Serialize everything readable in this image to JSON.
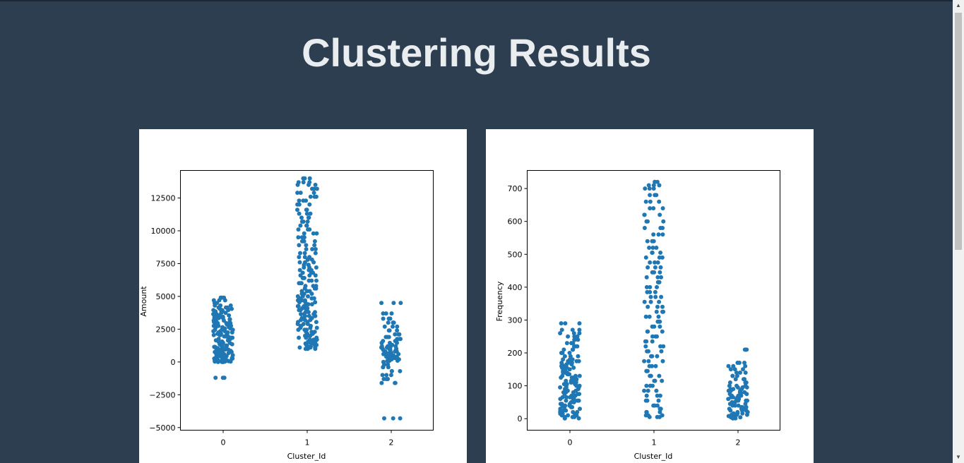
{
  "page": {
    "title": "Clustering Results"
  },
  "chart_data": [
    {
      "type": "scatter",
      "subtype": "strip",
      "title": "",
      "xlabel": "Cluster_Id",
      "ylabel": "Amount",
      "categories": [
        "0",
        "1",
        "2"
      ],
      "ylim": [
        -5200,
        14600
      ],
      "yticks": [
        -5000,
        -2500,
        0,
        2500,
        5000,
        7500,
        10000,
        12500
      ],
      "ytick_labels": [
        "−5000",
        "−2500",
        "0",
        "2500",
        "5000",
        "7500",
        "10000",
        "12500"
      ],
      "grid": false,
      "point_color": "#1f77b4",
      "series": [
        {
          "category": "0",
          "values": [
            -1200,
            0,
            30,
            60,
            100,
            150,
            200,
            260,
            320,
            380,
            450,
            520,
            600,
            680,
            760,
            850,
            950,
            1050,
            1150,
            1250,
            1350,
            1450,
            1550,
            1650,
            1750,
            1850,
            1950,
            2050,
            2150,
            2250,
            2350,
            2450,
            2550,
            2650,
            2750,
            2850,
            2950,
            3050,
            3150,
            3250,
            3350,
            3450,
            3550,
            3650,
            3750,
            3850,
            3950,
            4050,
            4150,
            4300,
            4500,
            4700,
            4900
          ]
        },
        {
          "category": "1",
          "values": [
            1000,
            1100,
            1200,
            1300,
            1400,
            1550,
            1700,
            1850,
            2000,
            2150,
            2300,
            2450,
            2600,
            2750,
            2900,
            3050,
            3200,
            3350,
            3500,
            3650,
            3800,
            3950,
            4100,
            4250,
            4400,
            4550,
            4700,
            4850,
            5000,
            5200,
            5400,
            5600,
            5800,
            6000,
            6200,
            6400,
            6600,
            6800,
            7000,
            7200,
            7400,
            7600,
            7800,
            8000,
            8300,
            8600,
            8900,
            9200,
            9500,
            9800,
            10100,
            10400,
            10700,
            11000,
            11300,
            11600,
            12000,
            12300,
            12600,
            12900,
            13200,
            13500,
            13700,
            14000
          ]
        },
        {
          "category": "2",
          "values": [
            -4300,
            -1600,
            -1300,
            -1000,
            -700,
            -400,
            -200,
            0,
            100,
            200,
            300,
            400,
            500,
            600,
            700,
            800,
            900,
            1000,
            1100,
            1200,
            1300,
            1450,
            1600,
            1750,
            1900,
            2100,
            2400,
            2700,
            3000,
            3300,
            3700,
            4500
          ]
        }
      ]
    },
    {
      "type": "scatter",
      "subtype": "strip",
      "title": "",
      "xlabel": "Cluster_Id",
      "ylabel": "Frequency",
      "categories": [
        "0",
        "1",
        "2"
      ],
      "ylim": [
        -35,
        755
      ],
      "yticks": [
        0,
        100,
        200,
        300,
        400,
        500,
        600,
        700
      ],
      "ytick_labels": [
        "0",
        "100",
        "200",
        "300",
        "400",
        "500",
        "600",
        "700"
      ],
      "grid": false,
      "point_color": "#1f77b4",
      "series": [
        {
          "category": "0",
          "values": [
            1,
            5,
            10,
            15,
            20,
            25,
            30,
            35,
            40,
            45,
            50,
            55,
            60,
            65,
            70,
            75,
            80,
            85,
            90,
            95,
            100,
            105,
            110,
            115,
            120,
            125,
            130,
            135,
            140,
            145,
            150,
            155,
            160,
            165,
            170,
            175,
            180,
            190,
            200,
            210,
            220,
            230,
            240,
            250,
            260,
            270,
            290
          ]
        },
        {
          "category": "1",
          "values": [
            5,
            10,
            20,
            30,
            40,
            55,
            70,
            85,
            100,
            115,
            130,
            145,
            160,
            175,
            190,
            205,
            220,
            235,
            250,
            265,
            280,
            295,
            310,
            325,
            340,
            355,
            370,
            385,
            400,
            415,
            430,
            445,
            460,
            475,
            490,
            505,
            520,
            540,
            560,
            580,
            600,
            620,
            640,
            660,
            680,
            700,
            710,
            720
          ]
        },
        {
          "category": "2",
          "values": [
            1,
            4,
            8,
            12,
            16,
            20,
            25,
            30,
            35,
            40,
            45,
            50,
            55,
            60,
            65,
            70,
            75,
            80,
            85,
            90,
            95,
            100,
            110,
            120,
            130,
            140,
            150,
            160,
            170,
            210
          ]
        }
      ]
    }
  ]
}
